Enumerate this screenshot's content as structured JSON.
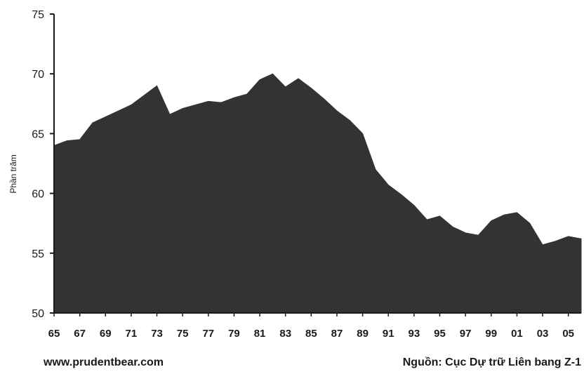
{
  "chart_data": {
    "type": "area",
    "title": "",
    "xlabel": "",
    "ylabel": "Phần trăm",
    "x": [
      1965,
      1966,
      1967,
      1968,
      1969,
      1970,
      1971,
      1972,
      1973,
      1974,
      1975,
      1976,
      1977,
      1978,
      1979,
      1980,
      1981,
      1982,
      1983,
      1984,
      1985,
      1986,
      1987,
      1988,
      1989,
      1990,
      1991,
      1992,
      1993,
      1994,
      1995,
      1996,
      1997,
      1998,
      1999,
      2000,
      2001,
      2002,
      2003,
      2004,
      2005,
      2006
    ],
    "series": [
      {
        "values": [
          64.0,
          64.4,
          64.5,
          65.9,
          66.4,
          66.9,
          67.4,
          68.2,
          69.0,
          66.6,
          67.1,
          67.4,
          67.7,
          67.6,
          68.0,
          68.3,
          69.5,
          70.0,
          68.9,
          69.6,
          68.8,
          67.9,
          66.9,
          66.1,
          65.0,
          62.0,
          60.7,
          59.9,
          59.0,
          57.8,
          58.1,
          57.2,
          56.7,
          56.5,
          57.7,
          58.2,
          58.4,
          57.5,
          55.7,
          56.0,
          56.4,
          56.2
        ]
      }
    ],
    "ylim": [
      50,
      75
    ],
    "xlim": [
      1965,
      2006
    ],
    "y_ticks": [
      50,
      55,
      60,
      65,
      70,
      75
    ],
    "x_tick_labels": [
      "65",
      "67",
      "69",
      "71",
      "73",
      "75",
      "77",
      "79",
      "81",
      "83",
      "85",
      "87",
      "89",
      "91",
      "93",
      "95",
      "97",
      "99",
      "01",
      "03",
      "05"
    ],
    "x_tick_years": [
      1965,
      1967,
      1969,
      1971,
      1973,
      1975,
      1977,
      1979,
      1981,
      1983,
      1985,
      1987,
      1989,
      1991,
      1993,
      1995,
      1997,
      1999,
      2001,
      2003,
      2005
    ],
    "grid": false,
    "fill_color": "#333333",
    "axis_color": "#1a1a1a"
  },
  "footer": {
    "left": "www.prudentbear.com",
    "right": "Nguồn: Cục Dự trữ Liên bang Z-1"
  }
}
